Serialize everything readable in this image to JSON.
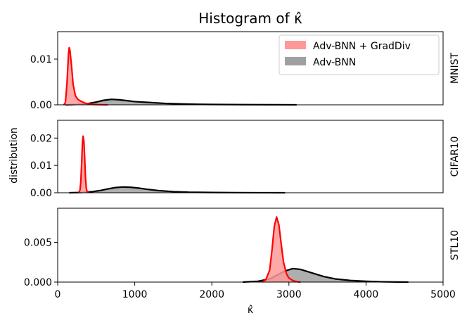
{
  "chart_data": {
    "type": "area",
    "title": "Histogram of κ̂",
    "xlabel": "κ̂",
    "ylabel": "distribution",
    "xlim": [
      0,
      5000
    ],
    "x_ticks": [
      0,
      1000,
      2000,
      3000,
      4000,
      5000
    ],
    "legend": {
      "placement": "top-right",
      "entries": [
        {
          "name": "Adv-BNN + GradDiv",
          "color": "#ff9999"
        },
        {
          "name": "Adv-BNN",
          "color": "#a0a0a0"
        }
      ]
    },
    "panels": [
      {
        "name": "MNIST",
        "ylim": [
          0,
          0.016
        ],
        "y_ticks": [
          0.0,
          0.01
        ],
        "y_tick_labels": [
          "0.00",
          "0.01"
        ],
        "series": [
          {
            "name": "Adv-BNN",
            "fill": "#a0a0a0",
            "line": "#000000",
            "x": [
              100,
              250,
              400,
              500,
              600,
              700,
              800,
              900,
              1000,
              1200,
              1400,
              1600,
              1800,
              2000,
              2400,
              2800,
              3100
            ],
            "y": [
              0,
              0.0001,
              0.0003,
              0.0006,
              0.001,
              0.0012,
              0.0011,
              0.0009,
              0.0007,
              0.0005,
              0.0003,
              0.0002,
              0.00012,
              8e-05,
              4e-05,
              2e-05,
              0
            ]
          },
          {
            "name": "Adv-BNN + GradDiv",
            "fill": "#ff9999",
            "line": "#ff0000",
            "x": [
              80,
              100,
              120,
              140,
              150,
              160,
              180,
              200,
              230,
              260,
              300,
              350,
              400,
              450,
              500,
              550,
              600,
              650
            ],
            "y": [
              0,
              0.0005,
              0.0045,
              0.011,
              0.0125,
              0.0118,
              0.0085,
              0.0045,
              0.002,
              0.0012,
              0.0008,
              0.0004,
              0.0002,
              0.0001,
              6e-05,
              3e-05,
              1e-05,
              0
            ]
          }
        ]
      },
      {
        "name": "CIFAR10",
        "ylim": [
          0,
          0.0265
        ],
        "y_ticks": [
          0.0,
          0.01,
          0.02
        ],
        "y_tick_labels": [
          "0.00",
          "0.01",
          "0.02"
        ],
        "series": [
          {
            "name": "Adv-BNN",
            "fill": "#a0a0a0",
            "line": "#000000",
            "x": [
              150,
              300,
              450,
              550,
              650,
              750,
              850,
              950,
              1050,
              1150,
              1300,
              1500,
              1700,
              2000,
              2300,
              2600,
              2950
            ],
            "y": [
              0,
              0.0001,
              0.0004,
              0.0008,
              0.0014,
              0.0019,
              0.0021,
              0.002,
              0.0017,
              0.0013,
              0.0008,
              0.0004,
              0.0002,
              0.0001,
              5e-05,
              2e-05,
              0
            ]
          },
          {
            "name": "Adv-BNN + GradDiv",
            "fill": "#ff9999",
            "line": "#ff0000",
            "x": [
              270,
              290,
              300,
              310,
              320,
              330,
              340,
              350,
              360,
              370,
              380,
              400
            ],
            "y": [
              0,
              0.001,
              0.004,
              0.01,
              0.0175,
              0.0207,
              0.019,
              0.013,
              0.006,
              0.002,
              0.0005,
              0
            ]
          }
        ]
      },
      {
        "name": "STL10",
        "ylim": [
          0,
          0.0093
        ],
        "y_ticks": [
          0.0,
          0.005
        ],
        "y_tick_labels": [
          "0.000",
          "0.005"
        ],
        "series": [
          {
            "name": "Adv-BNN",
            "fill": "#a0a0a0",
            "line": "#000000",
            "x": [
              2400,
              2600,
              2750,
              2850,
              2950,
              3050,
              3150,
              3250,
              3350,
              3450,
              3600,
              3800,
              4000,
              4200,
              4400,
              4550
            ],
            "y": [
              0,
              0.0001,
              0.0004,
              0.0009,
              0.0014,
              0.0017,
              0.0016,
              0.0013,
              0.001,
              0.0007,
              0.0004,
              0.0002,
              0.0001,
              4e-05,
              1e-05,
              0
            ]
          },
          {
            "name": "Adv-BNN + GradDiv",
            "fill": "#ff9999",
            "line": "#ff0000",
            "x": [
              2650,
              2700,
              2750,
              2780,
              2810,
              2840,
              2870,
              2900,
              2930,
              2970,
              3000,
              3050,
              3100,
              3150
            ],
            "y": [
              0,
              0.0003,
              0.0015,
              0.004,
              0.007,
              0.0082,
              0.0072,
              0.0048,
              0.0025,
              0.001,
              0.0005,
              0.0002,
              5e-05,
              0
            ]
          }
        ]
      }
    ]
  }
}
